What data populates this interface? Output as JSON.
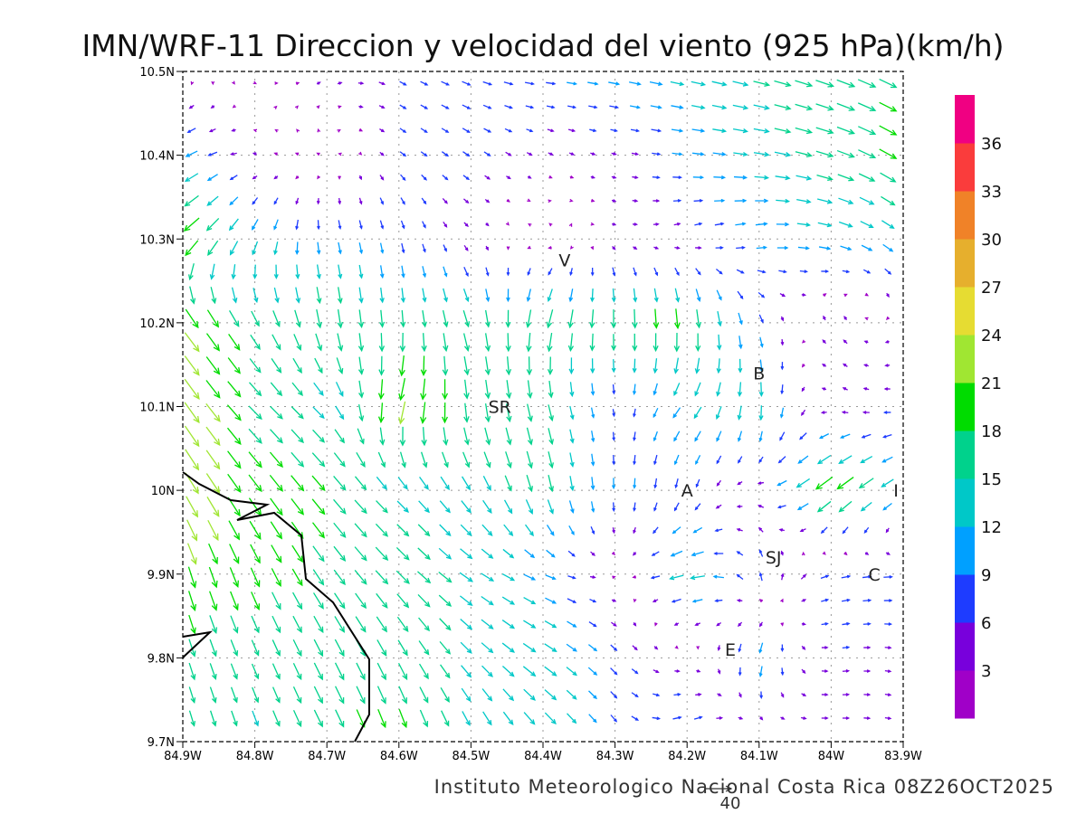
{
  "chart_data": {
    "type": "vector-field",
    "title": "IMN/WRF-11 Direccion y velocidad del viento (925 hPa)(km/h)",
    "footer": "Instituto Meteorologico Nacional Costa Rica 08Z26OCT2025",
    "reference_vector": {
      "value": 40,
      "label": "40"
    },
    "xlabel": "",
    "ylabel": "",
    "xlim": [
      -84.9,
      -83.9
    ],
    "ylim": [
      9.7,
      10.5
    ],
    "grid": true,
    "x_tick_labels": [
      "84.9W",
      "84.8W",
      "84.7W",
      "84.6W",
      "84.5W",
      "84.4W",
      "84.3W",
      "84.2W",
      "84.1W",
      "84W",
      "83.9W"
    ],
    "y_tick_labels": [
      "10.5N",
      "10.4N",
      "10.3N",
      "10.2N",
      "10.1N",
      "10N",
      "9.9N",
      "9.8N",
      "9.7N"
    ],
    "colorbar": {
      "bin_width_kmh": 3,
      "labels": [
        "3",
        "6",
        "9",
        "12",
        "15",
        "18",
        "21",
        "24",
        "27",
        "30",
        "33",
        "36"
      ],
      "colors": [
        "#a000c8",
        "#7800dc",
        "#1e3cff",
        "#00a0ff",
        "#00c8c8",
        "#00d28c",
        "#00dc00",
        "#a0e632",
        "#e6dc32",
        "#e6af2d",
        "#f08228",
        "#fa3c3c",
        "#f00082"
      ]
    },
    "place_labels": [
      {
        "text": "V",
        "lon": -84.37,
        "lat": 10.275
      },
      {
        "text": "SR",
        "lon": -84.46,
        "lat": 10.1
      },
      {
        "text": "B",
        "lon": -84.1,
        "lat": 10.14
      },
      {
        "text": "A",
        "lon": -84.2,
        "lat": 10.0
      },
      {
        "text": "I",
        "lon": -83.91,
        "lat": 10.0
      },
      {
        "text": "SJ",
        "lon": -84.08,
        "lat": 9.92
      },
      {
        "text": "C",
        "lon": -83.94,
        "lat": 9.9
      },
      {
        "text": "E",
        "lon": -84.14,
        "lat": 9.81
      }
    ],
    "wind_grid_note": "u,v components in km/h; rows by latitude (10.5N to 9.7N), columns by longitude (84.9W to 83.9W)",
    "wind_lats": [
      10.5,
      10.4,
      10.3,
      10.2,
      10.1,
      10.0,
      9.9,
      9.8,
      9.7
    ],
    "wind_lons": [
      -84.9,
      -84.8,
      -84.7,
      -84.6,
      -84.5,
      -84.4,
      -84.3,
      -84.2,
      -84.1,
      -84.0,
      -83.9
    ],
    "u": [
      [
        1,
        2,
        4,
        6,
        8,
        9,
        11,
        13,
        15,
        17,
        16
      ],
      [
        -12,
        -3,
        -2,
        5,
        6,
        4,
        4,
        10,
        14,
        16,
        16
      ],
      [
        -16,
        -6,
        2,
        2,
        3,
        -3,
        3,
        5,
        10,
        12,
        10
      ],
      [
        14,
        8,
        3,
        1,
        5,
        -5,
        0,
        2,
        3,
        -3,
        -2
      ],
      [
        14,
        12,
        10,
        -6,
        2,
        4,
        1,
        -8,
        0,
        -4,
        -6
      ],
      [
        12,
        12,
        12,
        10,
        8,
        4,
        0,
        -2,
        -5,
        -18,
        -10
      ],
      [
        6,
        8,
        10,
        12,
        12,
        10,
        2,
        -16,
        -2,
        8,
        8
      ],
      [
        5,
        6,
        8,
        8,
        10,
        12,
        6,
        3,
        -3,
        6,
        5
      ],
      [
        4,
        5,
        8,
        6,
        6,
        10,
        5,
        10,
        4,
        6,
        5
      ]
    ],
    "v": [
      [
        -1,
        -1,
        2,
        -3,
        -3,
        -1,
        -2,
        -3,
        -4,
        -6,
        -8
      ],
      [
        -6,
        1,
        1,
        -4,
        -4,
        -2,
        -1,
        -1,
        -2,
        -5,
        -10
      ],
      [
        -14,
        -12,
        -10,
        -8,
        -3,
        2,
        -1,
        2,
        2,
        -3,
        -8
      ],
      [
        -18,
        -14,
        -18,
        -16,
        -16,
        -18,
        -18,
        -20,
        -8,
        5,
        -3
      ],
      [
        -20,
        -12,
        -10,
        -22,
        -18,
        -16,
        -6,
        -10,
        -15,
        2,
        0
      ],
      [
        -20,
        -16,
        -14,
        -10,
        -12,
        -16,
        -10,
        -8,
        1,
        -14,
        -6
      ],
      [
        -20,
        -18,
        -14,
        -12,
        -8,
        -4,
        1,
        -4,
        8,
        2,
        0
      ],
      [
        -16,
        -14,
        -16,
        -15,
        -10,
        -8,
        -6,
        0,
        -12,
        1,
        -1
      ],
      [
        -14,
        -14,
        -16,
        -18,
        -14,
        -12,
        -6,
        4,
        1,
        0,
        -1
      ]
    ]
  }
}
